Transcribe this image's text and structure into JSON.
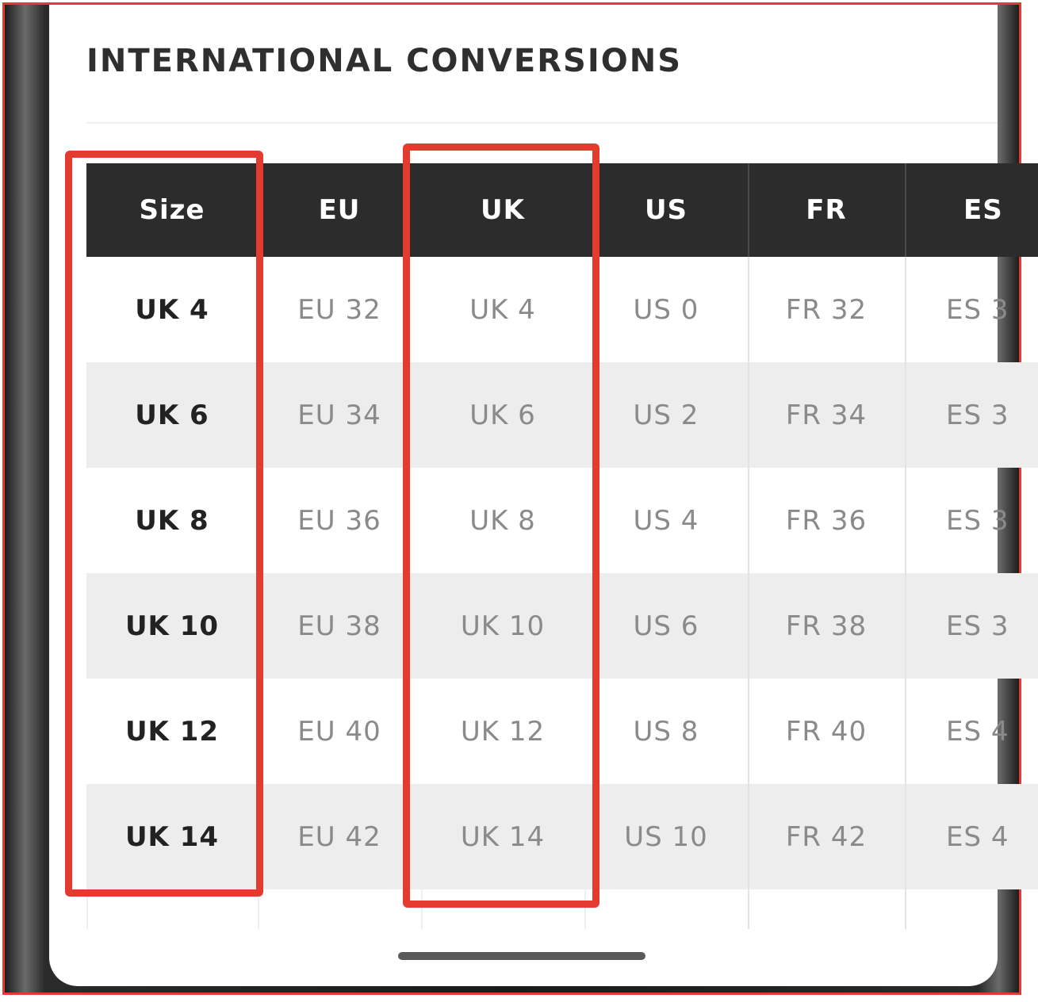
{
  "section": {
    "title": "INTERNATIONAL CONVERSIONS"
  },
  "table": {
    "headers": [
      "Size",
      "EU",
      "UK",
      "US",
      "FR",
      "ES"
    ],
    "rows": [
      [
        "UK 4",
        "EU 32",
        "UK 4",
        "US 0",
        "FR 32",
        "ES 3"
      ],
      [
        "UK 6",
        "EU 34",
        "UK 6",
        "US 2",
        "FR 34",
        "ES 3"
      ],
      [
        "UK 8",
        "EU 36",
        "UK 8",
        "US 4",
        "FR 36",
        "ES 3"
      ],
      [
        "UK 10",
        "EU 38",
        "UK 10",
        "US 6",
        "FR 38",
        "ES 3"
      ],
      [
        "UK 12",
        "EU 40",
        "UK 12",
        "US 8",
        "FR 40",
        "ES 4"
      ],
      [
        "UK 14",
        "EU 42",
        "UK 14",
        "US 10",
        "FR 42",
        "ES 4"
      ]
    ]
  },
  "colors": {
    "header_bg": "#2c2c2c",
    "alt_row_bg": "#ededed",
    "highlight": "#e53a2f"
  }
}
